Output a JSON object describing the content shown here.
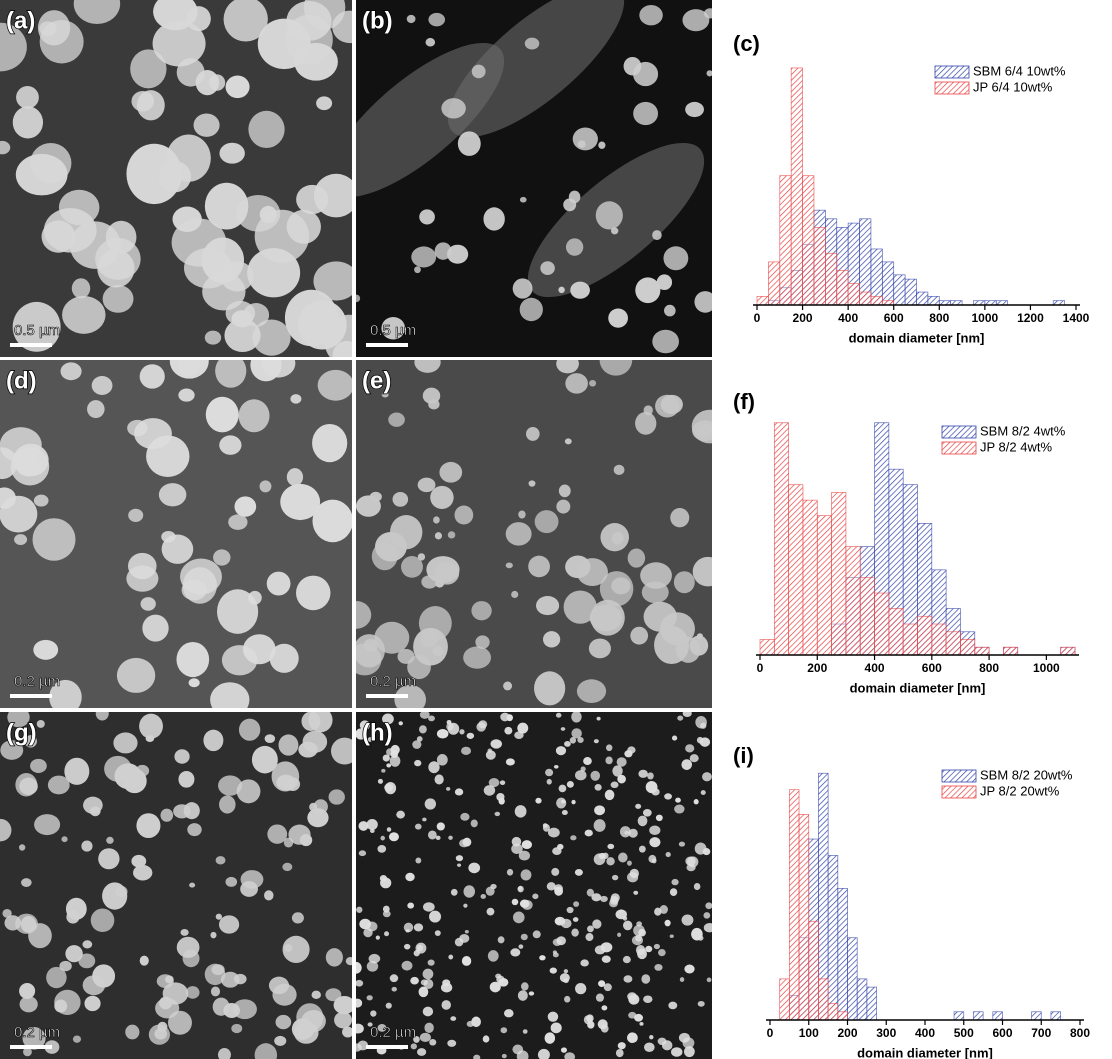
{
  "chart_data": [
    {
      "type": "histogram",
      "title": "(c)",
      "xlabel": "domain diameter  [nm]",
      "bins": [
        0,
        50,
        100,
        150,
        200,
        250,
        300,
        350,
        400,
        450,
        500,
        550,
        600,
        650,
        700,
        750,
        800,
        850,
        900,
        950,
        1000,
        1050,
        1100,
        1150,
        1200,
        1250,
        1300,
        1350,
        1400
      ],
      "series": [
        {
          "name": "SBM 6/4 10wt%",
          "color": "#3344aa",
          "values": [
            0,
            1,
            4,
            8,
            14,
            22,
            20,
            18,
            19,
            20,
            13,
            10,
            7,
            6,
            3,
            2,
            1,
            1,
            0,
            1,
            1,
            1,
            0,
            0,
            0,
            0,
            1,
            0
          ]
        },
        {
          "name": "JP 6/4 10wt%",
          "color": "#e84444",
          "values": [
            2,
            10,
            30,
            55,
            30,
            18,
            12,
            8,
            5,
            3,
            2,
            1,
            0,
            0,
            0,
            0,
            0,
            0,
            0,
            0,
            0,
            0,
            0,
            0,
            0,
            0,
            0,
            0
          ]
        }
      ],
      "xlim": [
        0,
        1400
      ],
      "xticks": [
        0,
        200,
        400,
        600,
        800,
        1000,
        1200,
        1400
      ],
      "ylim": [
        0,
        58
      ]
    },
    {
      "type": "histogram",
      "title": "(f)",
      "xlabel": "domain diameter   [nm]",
      "bins": [
        0,
        50,
        100,
        150,
        200,
        250,
        300,
        350,
        400,
        450,
        500,
        550,
        600,
        650,
        700,
        750,
        800,
        850,
        900,
        950,
        1000,
        1050,
        1100
      ],
      "series": [
        {
          "name": "SBM 8/2 4wt%",
          "color": "#3344aa",
          "values": [
            0,
            0,
            0,
            0,
            0,
            4,
            10,
            14,
            30,
            24,
            22,
            17,
            11,
            6,
            3,
            1,
            0,
            1,
            0,
            0,
            0,
            1
          ]
        },
        {
          "name": "JP 8/2 4wt%",
          "color": "#e84444",
          "values": [
            2,
            30,
            22,
            20,
            18,
            21,
            14,
            10,
            8,
            6,
            4,
            5,
            4,
            3,
            2,
            1,
            0,
            1,
            0,
            0,
            0,
            1
          ]
        }
      ],
      "xlim": [
        0,
        1100
      ],
      "xticks": [
        0,
        200,
        400,
        600,
        800,
        1000
      ],
      "ylim": [
        0,
        31
      ]
    },
    {
      "type": "histogram",
      "title": "(i)",
      "xlabel": "domain diameter   [nm]",
      "bins": [
        0,
        25,
        50,
        75,
        100,
        125,
        150,
        175,
        200,
        225,
        250,
        275,
        300,
        325,
        350,
        375,
        400,
        425,
        450,
        475,
        500,
        525,
        550,
        575,
        600,
        625,
        650,
        675,
        700,
        725,
        750,
        775,
        800
      ],
      "series": [
        {
          "name": "SBM 8/2 20wt%",
          "color": "#3344aa",
          "values": [
            0,
            0,
            3,
            10,
            22,
            30,
            20,
            16,
            10,
            5,
            4,
            0,
            0,
            0,
            0,
            0,
            0,
            0,
            0,
            1,
            0,
            1,
            0,
            1,
            0,
            0,
            0,
            1,
            0,
            1,
            0,
            0
          ]
        },
        {
          "name": "JP 8/2 20wt%",
          "color": "#e84444",
          "values": [
            0,
            5,
            28,
            25,
            12,
            5,
            2,
            1,
            0,
            0,
            0,
            0,
            0,
            0,
            0,
            0,
            0,
            0,
            0,
            0,
            0,
            0,
            0,
            0,
            0,
            0,
            0,
            0,
            0,
            0,
            0,
            0
          ]
        }
      ],
      "xlim": [
        0,
        800
      ],
      "xticks": [
        0,
        100,
        200,
        300,
        400,
        500,
        600,
        700,
        800
      ],
      "ylim": [
        0,
        31
      ]
    }
  ],
  "images": [
    {
      "label": "(a)",
      "scale": "0.5 µm"
    },
    {
      "label": "(b)",
      "scale": "0.5 µm"
    },
    {
      "label": "(d)",
      "scale": "0.2 µm"
    },
    {
      "label": "(e)",
      "scale": "0.2 µm"
    },
    {
      "label": "(g)",
      "scale": "0.2 µm"
    },
    {
      "label": "(h)",
      "scale": "0.2 µm"
    }
  ]
}
